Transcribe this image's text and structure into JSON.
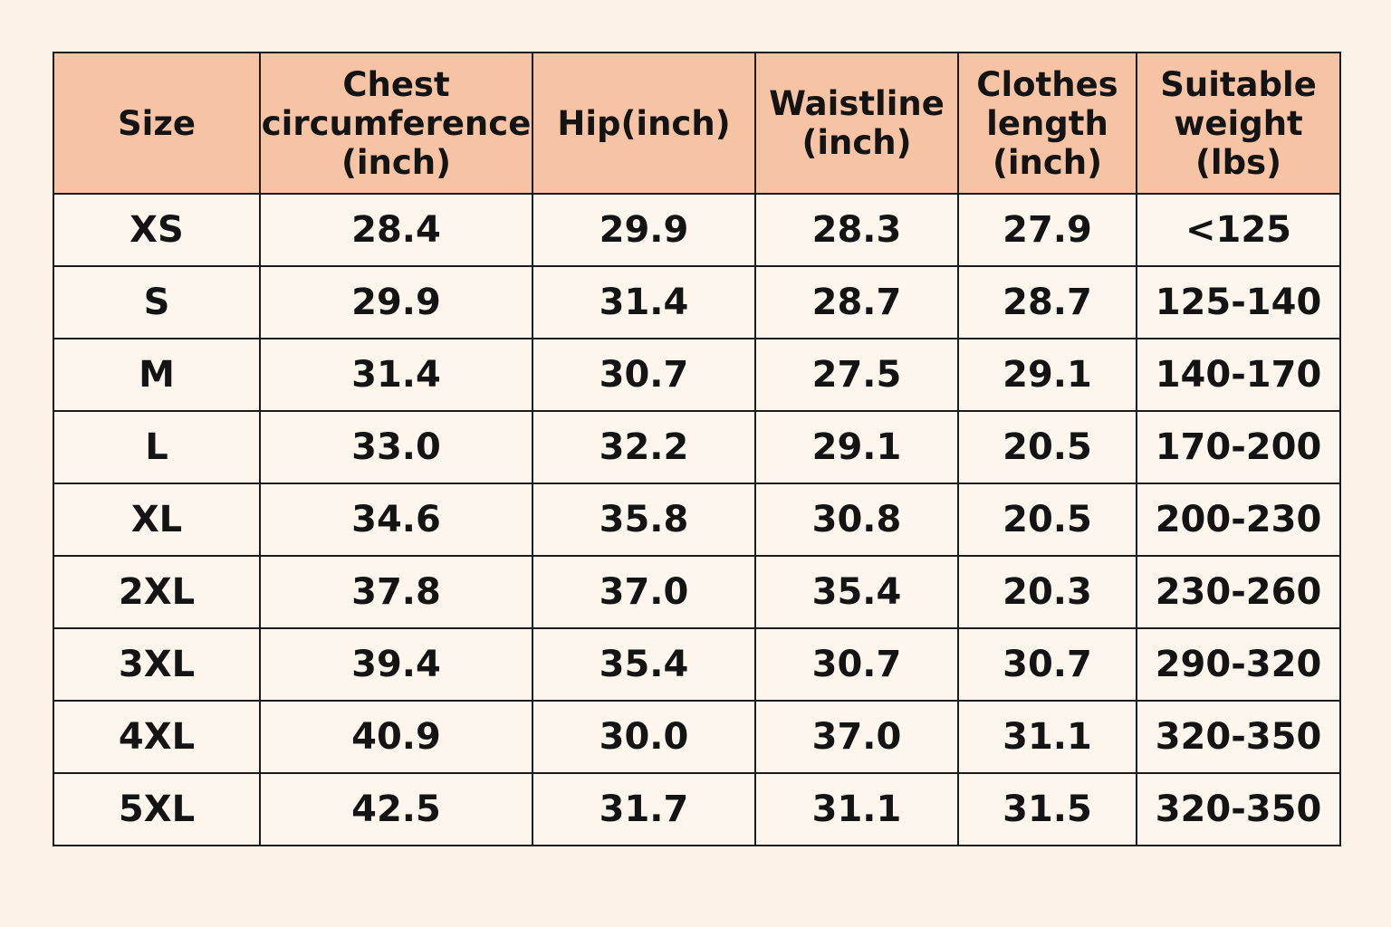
{
  "size_chart": {
    "headers": [
      "Size",
      "Chest\ncircumference\n(inch)",
      "Hip(inch)",
      "Waistline\n(inch)",
      "Clothes\nlength\n(inch)",
      "Suitable\nweight\n(lbs)"
    ],
    "rows": [
      [
        "XS",
        "28.4",
        "29.9",
        "28.3",
        "27.9",
        "<125"
      ],
      [
        "S",
        "29.9",
        "31.4",
        "28.7",
        "28.7",
        "125-140"
      ],
      [
        "M",
        "31.4",
        "30.7",
        "27.5",
        "29.1",
        "140-170"
      ],
      [
        "L",
        "33.0",
        "32.2",
        "29.1",
        "20.5",
        "170-200"
      ],
      [
        "XL",
        "34.6",
        "35.8",
        "30.8",
        "20.5",
        "200-230"
      ],
      [
        "2XL",
        "37.8",
        "37.0",
        "35.4",
        "20.3",
        "230-260"
      ],
      [
        "3XL",
        "39.4",
        "35.4",
        "30.7",
        "30.7",
        "290-320"
      ],
      [
        "4XL",
        "40.9",
        "30.0",
        "37.0",
        "31.1",
        "320-350"
      ],
      [
        "5XL",
        "42.5",
        "31.7",
        "31.1",
        "31.5",
        "320-350"
      ]
    ]
  },
  "colors": {
    "background": "#fcf3e8",
    "header_fill": "#f6c4a5",
    "cell_fill": "#fdf6ee",
    "border": "#1b1b1b",
    "text": "#141414"
  }
}
